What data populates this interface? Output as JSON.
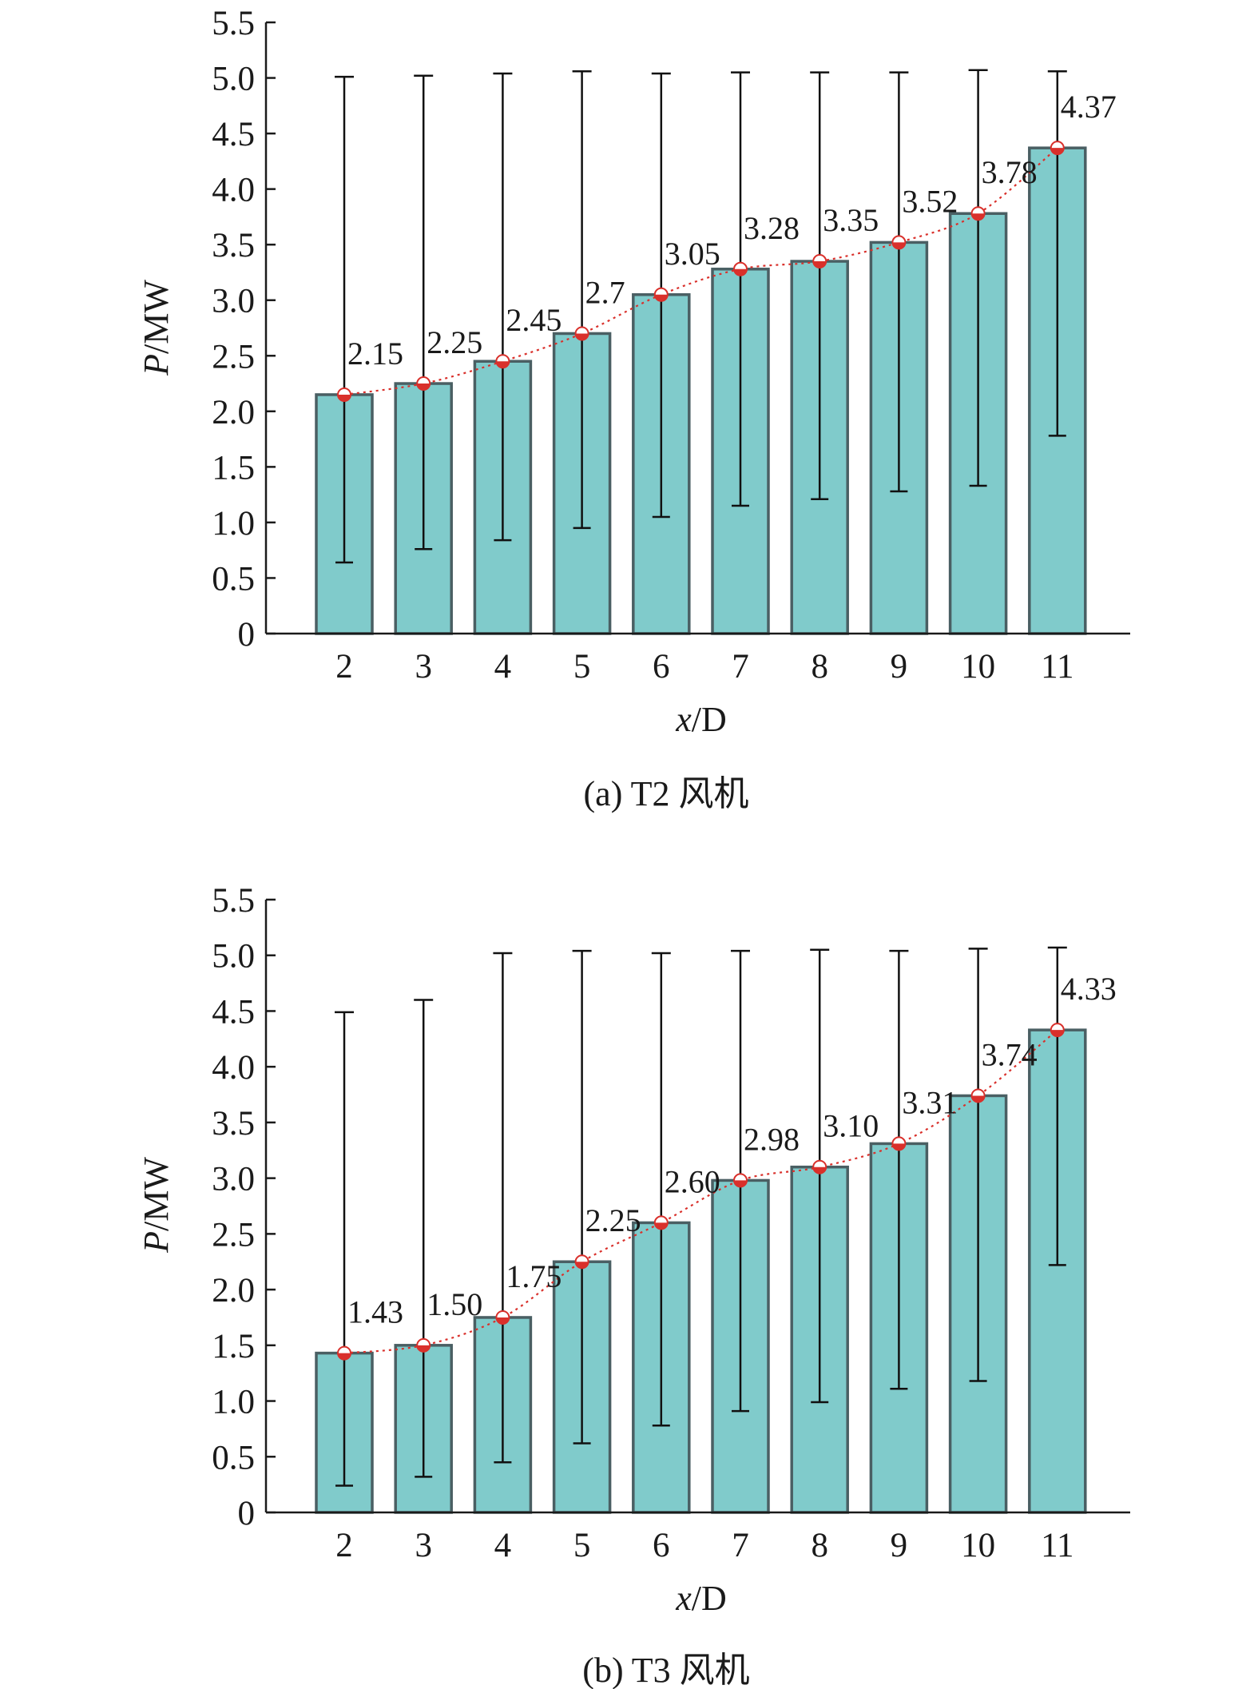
{
  "colors": {
    "bar_fill": "#80cbcb",
    "bar_edge": "#4a5f63",
    "trend_line": "#d9302b",
    "marker": "#d9302b",
    "error_bar": "#111111"
  },
  "chart_data": [
    {
      "type": "bar",
      "caption": "(a)  T2 风机",
      "xlabel_var": "x",
      "xlabel_unit": "/D",
      "ylabel_var": "P",
      "ylabel_unit": "/MW",
      "ylim": [
        0,
        5.5
      ],
      "yticks": [
        "0",
        "0.5",
        "1.0",
        "1.5",
        "2.0",
        "2.5",
        "3.0",
        "3.5",
        "4.0",
        "4.5",
        "5.0",
        "5.5"
      ],
      "categories": [
        "2",
        "3",
        "4",
        "5",
        "6",
        "7",
        "8",
        "9",
        "10",
        "11"
      ],
      "values": [
        2.15,
        2.25,
        2.45,
        2.7,
        3.05,
        3.28,
        3.35,
        3.52,
        3.78,
        4.37
      ],
      "labels": [
        "2.15",
        "2.25",
        "2.45",
        "2.7",
        "3.05",
        "3.28",
        "3.35",
        "3.52",
        "3.78",
        "4.37"
      ],
      "error_low": [
        0.64,
        0.76,
        0.84,
        0.95,
        1.05,
        1.15,
        1.21,
        1.28,
        1.33,
        1.78
      ],
      "error_high": [
        5.01,
        5.02,
        5.04,
        5.06,
        5.04,
        5.05,
        5.05,
        5.05,
        5.07,
        5.06
      ],
      "trend_line": true,
      "grid": false
    },
    {
      "type": "bar",
      "caption": "(b)  T3 风机",
      "xlabel_var": "x",
      "xlabel_unit": "/D",
      "ylabel_var": "P",
      "ylabel_unit": "/MW",
      "ylim": [
        0,
        5.5
      ],
      "yticks": [
        "0",
        "0.5",
        "1.0",
        "1.5",
        "2.0",
        "2.5",
        "3.0",
        "3.5",
        "4.0",
        "4.5",
        "5.0",
        "5.5"
      ],
      "categories": [
        "2",
        "3",
        "4",
        "5",
        "6",
        "7",
        "8",
        "9",
        "10",
        "11"
      ],
      "values": [
        1.43,
        1.5,
        1.75,
        2.25,
        2.6,
        2.98,
        3.1,
        3.31,
        3.74,
        4.33
      ],
      "labels": [
        "1.43",
        "1.50",
        "1.75",
        "2.25",
        "2.60",
        "2.98",
        "3.10",
        "3.31",
        "3.74",
        "4.33"
      ],
      "error_low": [
        0.24,
        0.32,
        0.45,
        0.62,
        0.78,
        0.91,
        0.99,
        1.11,
        1.18,
        2.22
      ],
      "error_high": [
        4.49,
        4.6,
        5.02,
        5.04,
        5.02,
        5.04,
        5.05,
        5.04,
        5.06,
        5.07
      ],
      "trend_line": true,
      "grid": false
    }
  ]
}
